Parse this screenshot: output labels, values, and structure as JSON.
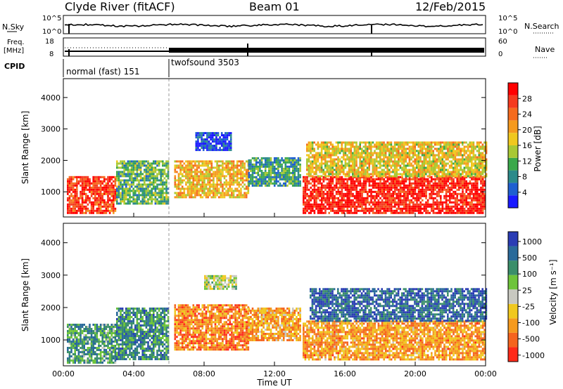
{
  "header": {
    "station": "Clyde River (fitACF)",
    "beam": "Beam 01",
    "date": "12/Feb/2015"
  },
  "top_panels": {
    "nsky": {
      "label": "N.Sky",
      "ytick_top": "10^5",
      "ytick_bottom": "10^0"
    },
    "nsearch": {
      "label": "N.Search",
      "ytick_top": "10^5",
      "ytick_bottom": "10^0"
    },
    "freq": {
      "label_line1": "Freq.",
      "label_line2": "[MHz]",
      "ytick_top": "18",
      "ytick_bottom": "8"
    },
    "nave": {
      "label": "Nave",
      "ytick_top": "60",
      "ytick_bottom": "0"
    },
    "cpid": {
      "label": "CPID",
      "segments": [
        {
          "name": "normal (fast) 151",
          "start_hour": 0,
          "end_hour": 6
        },
        {
          "name": "twofsound 3503",
          "start_hour": 6,
          "end_hour": 24
        }
      ]
    }
  },
  "colors": {
    "power_scale": [
      "#1a1aff",
      "#1f5fd0",
      "#2b8a8a",
      "#3aa84a",
      "#a8c834",
      "#f0c81e",
      "#f59a1e",
      "#f56b1e",
      "#f53a1e",
      "#ff0000"
    ],
    "velocity_scale": [
      "#2a3cb4",
      "#2a6a9a",
      "#3a8e6a",
      "#6ec43a",
      "#c8c8c0",
      "#f0c81e",
      "#f59a1e",
      "#f5641e",
      "#ff2a1a"
    ],
    "frame": "#000000"
  },
  "chart_data": [
    {
      "type": "heatmap",
      "name": "Power",
      "ylabel": "Slant Range [km]",
      "xlim": [
        0,
        24
      ],
      "ylim": [
        200,
        4600
      ],
      "yticks": [
        "1000",
        "2000",
        "3000",
        "4000"
      ],
      "colorbar": {
        "label": "Power [dB]",
        "range": [
          0,
          32
        ],
        "ticks": [
          "4",
          "8",
          "12",
          "16",
          "20",
          "24",
          "28"
        ]
      },
      "regions": [
        {
          "t0": 0.2,
          "t1": 3.0,
          "r0": 300,
          "r1": 1500,
          "level": 0.85
        },
        {
          "t0": 3.0,
          "t1": 6.0,
          "r0": 600,
          "r1": 2000,
          "level": 0.35
        },
        {
          "t0": 6.3,
          "t1": 10.5,
          "r0": 800,
          "r1": 2000,
          "level": 0.6
        },
        {
          "t0": 7.5,
          "t1": 9.5,
          "r0": 2300,
          "r1": 2900,
          "level": 0.1
        },
        {
          "t0": 10.5,
          "t1": 13.5,
          "r0": 1200,
          "r1": 2100,
          "level": 0.3
        },
        {
          "t0": 13.6,
          "t1": 24,
          "r0": 350,
          "r1": 1500,
          "level": 0.92
        },
        {
          "t0": 13.8,
          "t1": 24,
          "r0": 1500,
          "r1": 2600,
          "level": 0.55
        }
      ]
    },
    {
      "type": "heatmap",
      "name": "Velocity",
      "ylabel": "Slant Range [km]",
      "xlabel": "Time UT",
      "xlim": [
        0,
        24
      ],
      "ylim": [
        200,
        4600
      ],
      "xticks": [
        "00:00",
        "04:00",
        "08:00",
        "12:00",
        "16:00",
        "20:00",
        "00:00"
      ],
      "yticks": [
        "1000",
        "2000",
        "3000",
        "4000"
      ],
      "colorbar": {
        "label": "Velocity [m s⁻¹]",
        "ticks": [
          "1000",
          "500",
          "100",
          "25",
          "-25",
          "-100",
          "-500",
          "-1000"
        ]
      },
      "regions": [
        {
          "t0": 0.2,
          "t1": 3.0,
          "r0": 300,
          "r1": 1500,
          "level": 0.3
        },
        {
          "t0": 3.0,
          "t1": 6.0,
          "r0": 400,
          "r1": 2000,
          "level": 0.25
        },
        {
          "t0": 6.3,
          "t1": 10.5,
          "r0": 700,
          "r1": 2100,
          "level": 0.78
        },
        {
          "t0": 8.0,
          "t1": 9.8,
          "r0": 2600,
          "r1": 3000,
          "level": 0.48
        },
        {
          "t0": 10.5,
          "t1": 13.5,
          "r0": 1000,
          "r1": 2000,
          "level": 0.7
        },
        {
          "t0": 13.6,
          "t1": 24,
          "r0": 400,
          "r1": 1600,
          "level": 0.72
        },
        {
          "t0": 14.0,
          "t1": 24,
          "r0": 1600,
          "r1": 2600,
          "level": 0.15
        }
      ]
    }
  ]
}
